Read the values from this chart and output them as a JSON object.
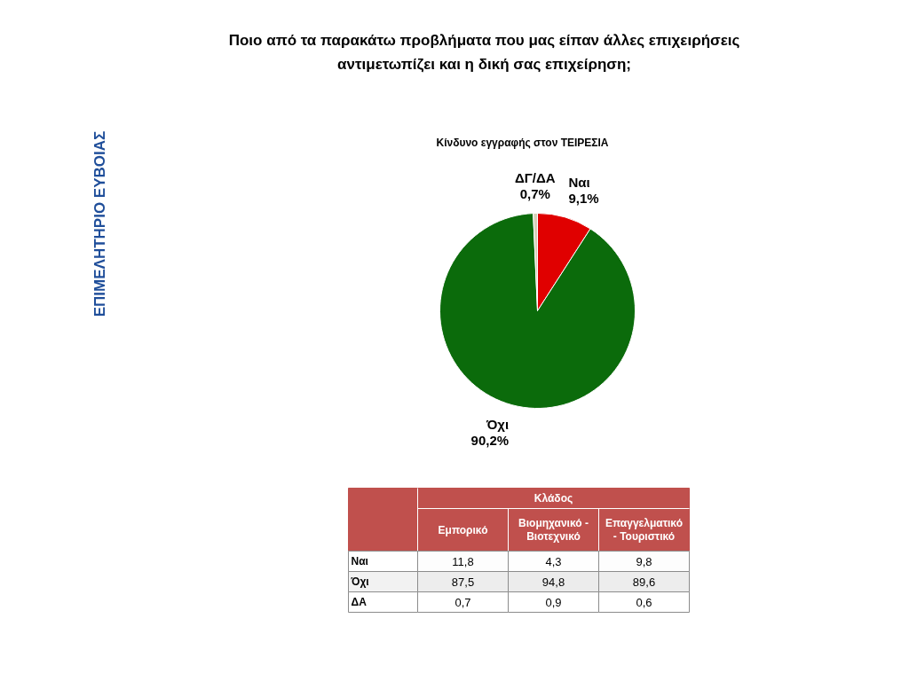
{
  "chart_data": [
    {
      "type": "pie",
      "title": "Ποιο από τα παρακάτω προβλήματα που μας είπαν άλλες επιχειρήσεις αντιμετωπίζει και η δική σας επιχείρηση;",
      "subtitle": "Κίνδυνο εγγραφής στον ΤΕΙΡΕΣΙΑ",
      "categories": [
        "Ναι",
        "Όχι",
        "ΔΓ/ΔΑ"
      ],
      "values": [
        9.1,
        90.2,
        0.7
      ],
      "colors": [
        "#e00000",
        "#0b6b0b",
        "#d6cfb8"
      ],
      "value_labels": [
        "9,1%",
        "90,2%",
        "0,7%"
      ],
      "annotations": [
        "ΕΠΙΜΕΛΗΤΗΡΙΟ ΕΥΒΟΙΑΣ"
      ]
    },
    {
      "type": "heatmap",
      "xlabel": "Κλάδος",
      "categories": [
        "Εμπορικό",
        "Βιομηχανικό - Βιοτεχνικό",
        "Επαγγελματικό - Τουριστικό"
      ],
      "y_categories": [
        "Ναι",
        "Όχι",
        "ΔΑ"
      ],
      "cells": [
        [
          11.8,
          4.3,
          9.8
        ],
        [
          87.5,
          94.8,
          89.6
        ],
        [
          0.7,
          0.9,
          0.6
        ]
      ],
      "cell_labels": [
        [
          "11,8",
          "4,3",
          "9,8"
        ],
        [
          "87,5",
          "94,8",
          "89,6"
        ],
        [
          "0,7",
          "0,9",
          "0,6"
        ]
      ]
    }
  ]
}
